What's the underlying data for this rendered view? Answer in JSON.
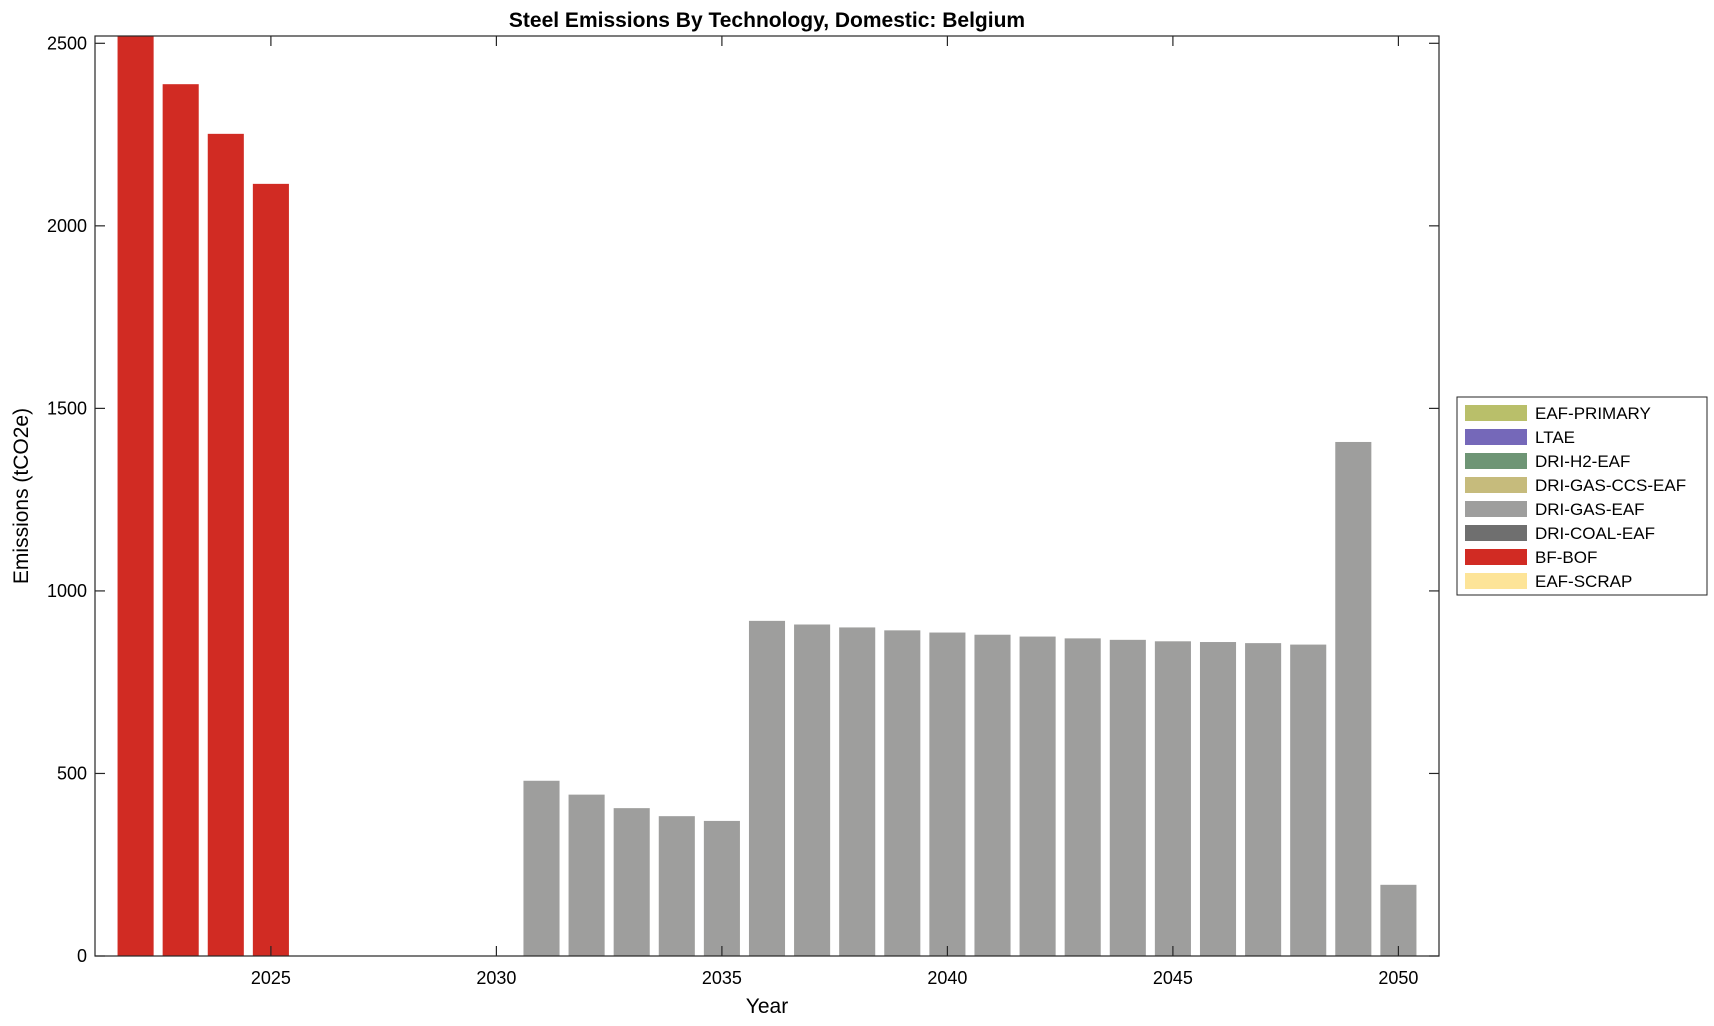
{
  "chart_data": {
    "type": "bar",
    "title": "Steel Emissions By Technology, Domestic: Belgium",
    "xlabel": "Year",
    "ylabel": "Emissions (tCO2e)",
    "xlim": [
      2021.1,
      2050.9
    ],
    "ylim": [
      0,
      2520
    ],
    "xticks": [
      2025,
      2030,
      2035,
      2040,
      2045,
      2050
    ],
    "xtick_labels": [
      "2025",
      "2030",
      "2035",
      "2040",
      "2045",
      "2050"
    ],
    "yticks": [
      0,
      500,
      1000,
      1500,
      2000,
      2500
    ],
    "ytick_labels": [
      "0",
      "500",
      "1000",
      "1500",
      "2000",
      "2500"
    ],
    "grid": false,
    "legend_position": "outside-right",
    "stacked": true,
    "x": [
      2022,
      2023,
      2024,
      2025,
      2026,
      2027,
      2028,
      2029,
      2030,
      2031,
      2032,
      2033,
      2034,
      2035,
      2036,
      2037,
      2038,
      2039,
      2040,
      2041,
      2042,
      2043,
      2044,
      2045,
      2046,
      2047,
      2048,
      2049,
      2050
    ],
    "series": [
      {
        "name": "EAF-PRIMARY",
        "color": "#b9bf6a",
        "values": [
          0,
          0,
          0,
          0,
          0,
          0,
          0,
          0,
          0,
          0,
          0,
          0,
          0,
          0,
          0,
          0,
          0,
          0,
          0,
          0,
          0,
          0,
          0,
          0,
          0,
          0,
          0,
          0,
          0
        ]
      },
      {
        "name": "LTAE",
        "color": "#7568b9",
        "values": [
          0,
          0,
          0,
          0,
          0,
          0,
          0,
          0,
          0,
          0,
          0,
          0,
          0,
          0,
          0,
          0,
          0,
          0,
          0,
          0,
          0,
          0,
          0,
          0,
          0,
          0,
          0,
          0,
          0
        ]
      },
      {
        "name": "DRI-H2-EAF",
        "color": "#6e9575",
        "values": [
          0,
          0,
          0,
          0,
          0,
          0,
          0,
          0,
          0,
          0,
          0,
          0,
          0,
          0,
          0,
          0,
          0,
          0,
          0,
          0,
          0,
          0,
          0,
          0,
          0,
          0,
          0,
          0,
          0
        ]
      },
      {
        "name": "DRI-GAS-CCS-EAF",
        "color": "#c6bb7c",
        "values": [
          0,
          0,
          0,
          0,
          0,
          0,
          0,
          0,
          0,
          0,
          0,
          0,
          0,
          0,
          0,
          0,
          0,
          0,
          0,
          0,
          0,
          0,
          0,
          0,
          0,
          0,
          0,
          0,
          0
        ]
      },
      {
        "name": "DRI-GAS-EAF",
        "color": "#9e9e9d",
        "values": [
          0,
          0,
          0,
          0,
          0,
          0,
          0,
          0,
          0,
          480,
          442,
          405,
          383,
          370,
          918,
          908,
          900,
          892,
          886,
          880,
          875,
          870,
          866,
          862,
          860,
          857,
          853,
          1408,
          195
        ]
      },
      {
        "name": "DRI-COAL-EAF",
        "color": "#6f6f6f",
        "values": [
          0,
          0,
          0,
          0,
          0,
          0,
          0,
          0,
          0,
          0,
          0,
          0,
          0,
          0,
          0,
          0,
          0,
          0,
          0,
          0,
          0,
          0,
          0,
          0,
          0,
          0,
          0,
          0,
          0
        ]
      },
      {
        "name": "BF-BOF",
        "color": "#d12b23",
        "values": [
          2525,
          2388,
          2252,
          2115,
          0,
          0,
          0,
          0,
          0,
          0,
          0,
          0,
          0,
          0,
          0,
          0,
          0,
          0,
          0,
          0,
          0,
          0,
          0,
          0,
          0,
          0,
          0,
          0,
          0
        ]
      },
      {
        "name": "EAF-SCRAP",
        "color": "#fde498",
        "values": [
          0,
          0,
          0,
          0,
          0,
          0,
          0,
          0,
          0,
          0,
          0,
          0,
          0,
          0,
          0,
          0,
          0,
          0,
          0,
          0,
          0,
          0,
          0,
          0,
          0,
          0,
          0,
          0,
          0
        ]
      }
    ]
  }
}
